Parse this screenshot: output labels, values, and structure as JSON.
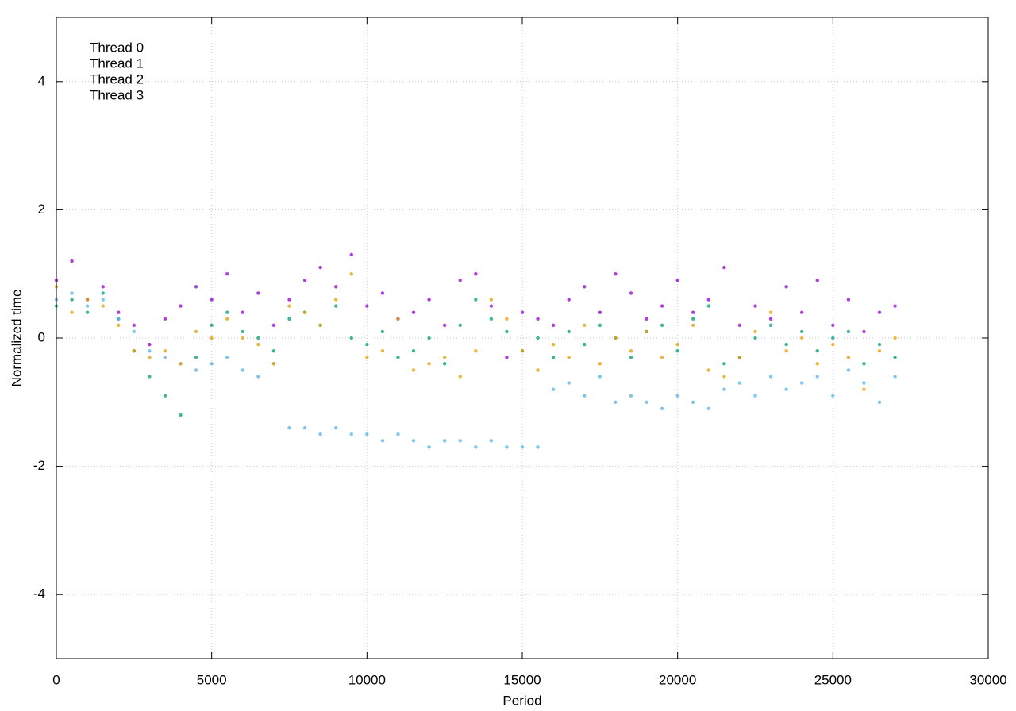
{
  "chart_data": {
    "type": "scatter",
    "xlabel": "Period",
    "ylabel": "Normalized time",
    "x": [
      0,
      500,
      1000,
      1500,
      2000,
      2500,
      3000,
      3500,
      4000,
      4500,
      5000,
      5500,
      6000,
      6500,
      7000,
      7500,
      8000,
      8500,
      9000,
      9500,
      10000,
      10500,
      11000,
      11500,
      12000,
      12500,
      13000,
      13500,
      14000,
      14500,
      15000,
      15500,
      16000,
      16500,
      17000,
      17500,
      18000,
      18500,
      19000,
      19500,
      20000,
      20500,
      21000,
      21500,
      22000,
      22500,
      23000,
      23500,
      24000,
      24500,
      25000,
      25500,
      26000,
      26500,
      27000
    ],
    "series": [
      {
        "name": "Thread 0",
        "color": "#9400d3",
        "values": [
          0.9,
          1.2,
          0.6,
          0.8,
          0.4,
          0.2,
          -0.1,
          0.3,
          0.5,
          0.8,
          0.6,
          1.0,
          0.4,
          0.7,
          0.2,
          0.6,
          0.9,
          1.1,
          0.8,
          1.3,
          0.5,
          0.7,
          0.3,
          0.4,
          0.6,
          0.2,
          0.9,
          1.0,
          0.5,
          -0.3,
          0.4,
          0.3,
          0.2,
          0.6,
          0.8,
          0.4,
          1.0,
          0.7,
          0.3,
          0.5,
          0.9,
          0.4,
          0.6,
          1.1,
          0.2,
          0.5,
          0.3,
          0.8,
          0.4,
          0.9,
          0.2,
          0.6,
          0.1,
          0.4,
          0.5
        ]
      },
      {
        "name": "Thread 1",
        "color": "#009e73",
        "values": [
          0.5,
          0.6,
          0.4,
          0.7,
          0.3,
          -0.2,
          -0.6,
          -0.9,
          -1.2,
          -0.3,
          0.2,
          0.4,
          0.1,
          0.0,
          -0.2,
          0.3,
          0.4,
          0.2,
          0.5,
          0.0,
          -0.1,
          0.1,
          -0.3,
          -0.2,
          0.0,
          -0.4,
          0.2,
          0.6,
          0.3,
          0.1,
          -0.2,
          0.0,
          -0.3,
          0.1,
          -0.1,
          0.2,
          0.0,
          -0.3,
          0.1,
          0.2,
          -0.2,
          0.3,
          0.5,
          -0.4,
          -0.3,
          0.0,
          0.2,
          -0.1,
          0.1,
          -0.2,
          0.0,
          0.1,
          -0.4,
          -0.1,
          -0.3
        ]
      },
      {
        "name": "Thread 2",
        "color": "#56b4e9",
        "values": [
          0.6,
          0.7,
          0.5,
          0.6,
          0.3,
          0.1,
          -0.2,
          -0.3,
          -0.4,
          -0.5,
          -0.4,
          -0.3,
          -0.5,
          -0.6,
          -0.4,
          -1.4,
          -1.4,
          -1.5,
          -1.4,
          -1.5,
          -1.5,
          -1.6,
          -1.5,
          -1.6,
          -1.7,
          -1.6,
          -1.6,
          -1.7,
          -1.6,
          -1.7,
          -1.7,
          -1.7,
          -0.8,
          -0.7,
          -0.9,
          -0.6,
          -1.0,
          -0.9,
          -1.0,
          -1.1,
          -0.9,
          -1.0,
          -1.1,
          -0.8,
          -0.7,
          -0.9,
          -0.6,
          -0.8,
          -0.7,
          -0.6,
          -0.9,
          -0.5,
          -0.7,
          -1.0,
          -0.6
        ]
      },
      {
        "name": "Thread 3",
        "color": "#e69f00",
        "values": [
          0.8,
          0.4,
          0.6,
          0.5,
          0.2,
          -0.2,
          -0.3,
          -0.2,
          -0.4,
          0.1,
          0.0,
          0.3,
          0.0,
          -0.1,
          -0.4,
          0.5,
          0.4,
          0.2,
          0.6,
          1.0,
          -0.3,
          -0.2,
          0.3,
          -0.5,
          -0.4,
          -0.3,
          -0.6,
          -0.2,
          0.6,
          0.3,
          -0.2,
          -0.5,
          -0.1,
          -0.3,
          0.2,
          -0.4,
          0.0,
          -0.2,
          0.1,
          -0.3,
          -0.1,
          0.2,
          -0.5,
          -0.6,
          -0.3,
          0.1,
          0.4,
          -0.2,
          0.0,
          -0.4,
          -0.1,
          -0.3,
          -0.8,
          -0.2,
          0.0
        ]
      }
    ],
    "xlim": [
      0,
      30000
    ],
    "xticks": [
      0,
      5000,
      10000,
      15000,
      20000,
      25000,
      30000
    ],
    "ylim": [
      -5,
      5
    ],
    "yticks": [
      -4,
      -2,
      0,
      2,
      4
    ],
    "grid": true,
    "legend": "top-left"
  }
}
